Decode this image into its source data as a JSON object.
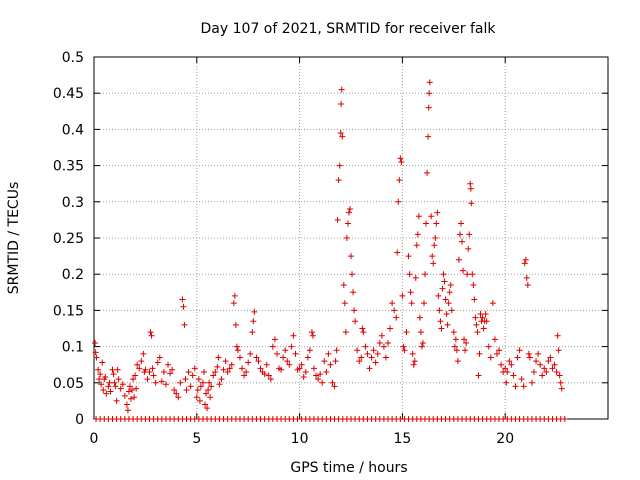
{
  "chart_data": {
    "type": "scatter",
    "title": "Day 107 of 2021, SRMTID for receiver falk",
    "xlabel": "GPS time / hours",
    "ylabel": "SRMTID / TECUs",
    "xlim": [
      0,
      25
    ],
    "ylim": [
      0,
      0.5
    ],
    "xticks": [
      "0",
      "5",
      "10",
      "15",
      "20"
    ],
    "xtick_values": [
      0,
      5,
      10,
      15,
      20
    ],
    "yticks": [
      "0",
      "0.05",
      "0.1",
      "0.15",
      "0.2",
      "0.25",
      "0.3",
      "0.35",
      "0.4",
      "0.45",
      "0.5"
    ],
    "ytick_values": [
      0,
      0.05,
      0.1,
      0.15,
      0.2,
      0.25,
      0.3,
      0.35,
      0.4,
      0.45,
      0.5
    ],
    "grid": true,
    "marker": "plus",
    "color": "#dd0000",
    "points": [
      [
        0.05,
        0.105
      ],
      [
        0.08,
        0.092
      ],
      [
        0.12,
        0.085
      ],
      [
        0.2,
        0.068
      ],
      [
        0.25,
        0.055
      ],
      [
        0.3,
        0.062
      ],
      [
        0.35,
        0.048
      ],
      [
        0.4,
        0.078
      ],
      [
        0.45,
        0.04
      ],
      [
        0.5,
        0.055
      ],
      [
        0.55,
        0.058
      ],
      [
        0.6,
        0.035
      ],
      [
        0.7,
        0.045
      ],
      [
        0.75,
        0.05
      ],
      [
        0.8,
        0.038
      ],
      [
        0.9,
        0.068
      ],
      [
        0.95,
        0.062
      ],
      [
        1.0,
        0.05
      ],
      [
        1.05,
        0.045
      ],
      [
        1.1,
        0.025
      ],
      [
        1.15,
        0.068
      ],
      [
        1.2,
        0.055
      ],
      [
        1.3,
        0.042
      ],
      [
        1.4,
        0.048
      ],
      [
        1.5,
        0.032
      ],
      [
        1.6,
        0.02
      ],
      [
        1.65,
        0.012
      ],
      [
        1.7,
        0.038
      ],
      [
        1.75,
        0.045
      ],
      [
        1.8,
        0.028
      ],
      [
        1.85,
        0.04
      ],
      [
        1.9,
        0.055
      ],
      [
        1.95,
        0.03
      ],
      [
        2.0,
        0.06
      ],
      [
        2.05,
        0.042
      ],
      [
        2.1,
        0.075
      ],
      [
        2.2,
        0.07
      ],
      [
        2.3,
        0.08
      ],
      [
        2.4,
        0.09
      ],
      [
        2.45,
        0.065
      ],
      [
        2.5,
        0.068
      ],
      [
        2.6,
        0.055
      ],
      [
        2.7,
        0.065
      ],
      [
        2.75,
        0.12
      ],
      [
        2.8,
        0.115
      ],
      [
        2.85,
        0.07
      ],
      [
        2.9,
        0.06
      ],
      [
        3.0,
        0.05
      ],
      [
        3.1,
        0.078
      ],
      [
        3.2,
        0.085
      ],
      [
        3.3,
        0.052
      ],
      [
        3.4,
        0.065
      ],
      [
        3.5,
        0.048
      ],
      [
        3.6,
        0.075
      ],
      [
        3.7,
        0.063
      ],
      [
        3.8,
        0.068
      ],
      [
        3.9,
        0.04
      ],
      [
        4.0,
        0.035
      ],
      [
        4.1,
        0.03
      ],
      [
        4.2,
        0.05
      ],
      [
        4.3,
        0.165
      ],
      [
        4.35,
        0.155
      ],
      [
        4.4,
        0.13
      ],
      [
        4.45,
        0.055
      ],
      [
        4.5,
        0.04
      ],
      [
        4.6,
        0.065
      ],
      [
        4.7,
        0.045
      ],
      [
        4.8,
        0.06
      ],
      [
        4.9,
        0.07
      ],
      [
        5.0,
        0.03
      ],
      [
        5.05,
        0.04
      ],
      [
        5.1,
        0.055
      ],
      [
        5.15,
        0.025
      ],
      [
        5.2,
        0.045
      ],
      [
        5.3,
        0.05
      ],
      [
        5.35,
        0.065
      ],
      [
        5.4,
        0.02
      ],
      [
        5.45,
        0.035
      ],
      [
        5.5,
        0.015
      ],
      [
        5.55,
        0.04
      ],
      [
        5.6,
        0.05
      ],
      [
        5.65,
        0.03
      ],
      [
        5.7,
        0.045
      ],
      [
        5.8,
        0.06
      ],
      [
        5.9,
        0.065
      ],
      [
        6.0,
        0.072
      ],
      [
        6.05,
        0.085
      ],
      [
        6.1,
        0.048
      ],
      [
        6.2,
        0.055
      ],
      [
        6.3,
        0.068
      ],
      [
        6.4,
        0.08
      ],
      [
        6.5,
        0.065
      ],
      [
        6.6,
        0.07
      ],
      [
        6.7,
        0.075
      ],
      [
        6.8,
        0.16
      ],
      [
        6.85,
        0.17
      ],
      [
        6.9,
        0.13
      ],
      [
        6.95,
        0.1
      ],
      [
        7.0,
        0.095
      ],
      [
        7.1,
        0.085
      ],
      [
        7.2,
        0.07
      ],
      [
        7.3,
        0.06
      ],
      [
        7.4,
        0.065
      ],
      [
        7.5,
        0.078
      ],
      [
        7.6,
        0.09
      ],
      [
        7.7,
        0.12
      ],
      [
        7.75,
        0.135
      ],
      [
        7.8,
        0.148
      ],
      [
        7.9,
        0.085
      ],
      [
        8.0,
        0.08
      ],
      [
        8.1,
        0.07
      ],
      [
        8.2,
        0.065
      ],
      [
        8.3,
        0.062
      ],
      [
        8.4,
        0.075
      ],
      [
        8.5,
        0.06
      ],
      [
        8.6,
        0.055
      ],
      [
        8.7,
        0.1
      ],
      [
        8.8,
        0.11
      ],
      [
        8.9,
        0.09
      ],
      [
        9.0,
        0.07
      ],
      [
        9.1,
        0.068
      ],
      [
        9.2,
        0.085
      ],
      [
        9.3,
        0.095
      ],
      [
        9.4,
        0.08
      ],
      [
        9.5,
        0.075
      ],
      [
        9.6,
        0.1
      ],
      [
        9.7,
        0.115
      ],
      [
        9.8,
        0.09
      ],
      [
        9.9,
        0.068
      ],
      [
        10.0,
        0.07
      ],
      [
        10.1,
        0.075
      ],
      [
        10.2,
        0.058
      ],
      [
        10.3,
        0.065
      ],
      [
        10.4,
        0.085
      ],
      [
        10.5,
        0.095
      ],
      [
        10.6,
        0.12
      ],
      [
        10.65,
        0.115
      ],
      [
        10.7,
        0.07
      ],
      [
        10.8,
        0.06
      ],
      [
        10.9,
        0.055
      ],
      [
        11.0,
        0.062
      ],
      [
        11.1,
        0.05
      ],
      [
        11.2,
        0.08
      ],
      [
        11.3,
        0.065
      ],
      [
        11.4,
        0.09
      ],
      [
        11.5,
        0.075
      ],
      [
        11.6,
        0.05
      ],
      [
        11.7,
        0.045
      ],
      [
        11.75,
        0.08
      ],
      [
        11.8,
        0.095
      ],
      [
        11.85,
        0.275
      ],
      [
        11.9,
        0.33
      ],
      [
        11.95,
        0.35
      ],
      [
        12.0,
        0.395
      ],
      [
        12.02,
        0.435
      ],
      [
        12.05,
        0.455
      ],
      [
        12.08,
        0.39
      ],
      [
        12.15,
        0.185
      ],
      [
        12.2,
        0.16
      ],
      [
        12.25,
        0.12
      ],
      [
        12.3,
        0.25
      ],
      [
        12.35,
        0.27
      ],
      [
        12.4,
        0.285
      ],
      [
        12.45,
        0.29
      ],
      [
        12.5,
        0.225
      ],
      [
        12.55,
        0.2
      ],
      [
        12.6,
        0.175
      ],
      [
        12.65,
        0.15
      ],
      [
        12.7,
        0.135
      ],
      [
        12.8,
        0.095
      ],
      [
        12.9,
        0.08
      ],
      [
        13.0,
        0.085
      ],
      [
        13.05,
        0.125
      ],
      [
        13.1,
        0.12
      ],
      [
        13.2,
        0.1
      ],
      [
        13.3,
        0.09
      ],
      [
        13.4,
        0.07
      ],
      [
        13.5,
        0.085
      ],
      [
        13.6,
        0.095
      ],
      [
        13.7,
        0.078
      ],
      [
        13.8,
        0.09
      ],
      [
        13.9,
        0.105
      ],
      [
        14.0,
        0.115
      ],
      [
        14.1,
        0.1
      ],
      [
        14.2,
        0.085
      ],
      [
        14.3,
        0.105
      ],
      [
        14.4,
        0.125
      ],
      [
        14.5,
        0.16
      ],
      [
        14.6,
        0.15
      ],
      [
        14.7,
        0.14
      ],
      [
        14.75,
        0.23
      ],
      [
        14.8,
        0.3
      ],
      [
        14.85,
        0.33
      ],
      [
        14.9,
        0.36
      ],
      [
        14.95,
        0.355
      ],
      [
        15.0,
        0.17
      ],
      [
        15.05,
        0.1
      ],
      [
        15.1,
        0.095
      ],
      [
        15.2,
        0.12
      ],
      [
        15.3,
        0.225
      ],
      [
        15.35,
        0.2
      ],
      [
        15.4,
        0.175
      ],
      [
        15.45,
        0.16
      ],
      [
        15.5,
        0.09
      ],
      [
        15.55,
        0.075
      ],
      [
        15.6,
        0.08
      ],
      [
        15.65,
        0.195
      ],
      [
        15.7,
        0.24
      ],
      [
        15.75,
        0.255
      ],
      [
        15.8,
        0.28
      ],
      [
        15.85,
        0.14
      ],
      [
        15.9,
        0.12
      ],
      [
        15.95,
        0.1
      ],
      [
        16.0,
        0.105
      ],
      [
        16.05,
        0.16
      ],
      [
        16.1,
        0.2
      ],
      [
        16.15,
        0.27
      ],
      [
        16.2,
        0.34
      ],
      [
        16.25,
        0.39
      ],
      [
        16.28,
        0.43
      ],
      [
        16.3,
        0.45
      ],
      [
        16.33,
        0.465
      ],
      [
        16.4,
        0.28
      ],
      [
        16.45,
        0.225
      ],
      [
        16.5,
        0.215
      ],
      [
        16.55,
        0.24
      ],
      [
        16.6,
        0.25
      ],
      [
        16.65,
        0.27
      ],
      [
        16.7,
        0.285
      ],
      [
        16.75,
        0.17
      ],
      [
        16.8,
        0.15
      ],
      [
        16.85,
        0.135
      ],
      [
        16.9,
        0.125
      ],
      [
        16.95,
        0.18
      ],
      [
        17.0,
        0.2
      ],
      [
        17.05,
        0.19
      ],
      [
        17.1,
        0.165
      ],
      [
        17.15,
        0.145
      ],
      [
        17.2,
        0.13
      ],
      [
        17.25,
        0.16
      ],
      [
        17.3,
        0.175
      ],
      [
        17.35,
        0.185
      ],
      [
        17.4,
        0.15
      ],
      [
        17.5,
        0.12
      ],
      [
        17.55,
        0.1
      ],
      [
        17.6,
        0.11
      ],
      [
        17.65,
        0.095
      ],
      [
        17.7,
        0.08
      ],
      [
        17.75,
        0.22
      ],
      [
        17.8,
        0.255
      ],
      [
        17.85,
        0.27
      ],
      [
        17.9,
        0.245
      ],
      [
        17.95,
        0.205
      ],
      [
        18.0,
        0.11
      ],
      [
        18.05,
        0.095
      ],
      [
        18.1,
        0.105
      ],
      [
        18.15,
        0.2
      ],
      [
        18.2,
        0.235
      ],
      [
        18.25,
        0.255
      ],
      [
        18.3,
        0.325
      ],
      [
        18.33,
        0.318
      ],
      [
        18.35,
        0.298
      ],
      [
        18.4,
        0.2
      ],
      [
        18.45,
        0.185
      ],
      [
        18.5,
        0.165
      ],
      [
        18.55,
        0.14
      ],
      [
        18.6,
        0.13
      ],
      [
        18.65,
        0.12
      ],
      [
        18.7,
        0.06
      ],
      [
        18.75,
        0.09
      ],
      [
        18.8,
        0.145
      ],
      [
        18.85,
        0.135
      ],
      [
        18.9,
        0.14
      ],
      [
        18.95,
        0.125
      ],
      [
        19.0,
        0.135
      ],
      [
        19.05,
        0.145
      ],
      [
        19.1,
        0.135
      ],
      [
        19.2,
        0.1
      ],
      [
        19.3,
        0.085
      ],
      [
        19.4,
        0.16
      ],
      [
        19.5,
        0.11
      ],
      [
        19.6,
        0.09
      ],
      [
        19.7,
        0.095
      ],
      [
        19.8,
        0.075
      ],
      [
        19.9,
        0.065
      ],
      [
        20.0,
        0.07
      ],
      [
        20.05,
        0.05
      ],
      [
        20.1,
        0.065
      ],
      [
        20.2,
        0.08
      ],
      [
        20.3,
        0.075
      ],
      [
        20.4,
        0.06
      ],
      [
        20.5,
        0.045
      ],
      [
        20.6,
        0.085
      ],
      [
        20.7,
        0.095
      ],
      [
        20.8,
        0.055
      ],
      [
        20.9,
        0.045
      ],
      [
        20.95,
        0.215
      ],
      [
        21.0,
        0.22
      ],
      [
        21.05,
        0.195
      ],
      [
        21.1,
        0.185
      ],
      [
        21.15,
        0.09
      ],
      [
        21.2,
        0.085
      ],
      [
        21.3,
        0.05
      ],
      [
        21.4,
        0.065
      ],
      [
        21.5,
        0.08
      ],
      [
        21.6,
        0.09
      ],
      [
        21.7,
        0.075
      ],
      [
        21.8,
        0.06
      ],
      [
        21.9,
        0.07
      ],
      [
        22.0,
        0.065
      ],
      [
        22.1,
        0.08
      ],
      [
        22.2,
        0.085
      ],
      [
        22.3,
        0.07
      ],
      [
        22.4,
        0.075
      ],
      [
        22.5,
        0.065
      ],
      [
        22.55,
        0.115
      ],
      [
        22.6,
        0.095
      ],
      [
        22.65,
        0.06
      ],
      [
        22.7,
        0.05
      ],
      [
        22.75,
        0.042
      ]
    ],
    "zero_line_x": [
      0.1,
      22.9
    ]
  }
}
